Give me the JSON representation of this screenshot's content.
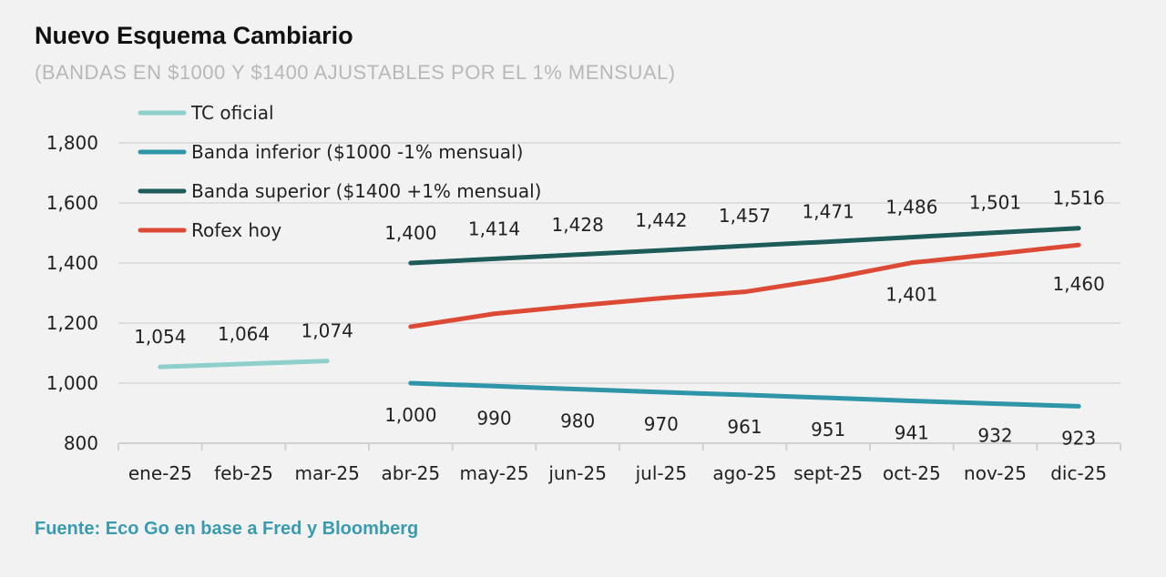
{
  "chart_data": {
    "type": "line",
    "title": "Nuevo Esquema Cambiario",
    "subtitle": "(BANDAS EN $1000 Y $1400 AJUSTABLES POR EL 1% MENSUAL)",
    "source": "Fuente: Eco Go en base a Fred y Bloomberg",
    "categories": [
      "ene-25",
      "feb-25",
      "mar-25",
      "abr-25",
      "may-25",
      "jun-25",
      "jul-25",
      "ago-25",
      "sept-25",
      "oct-25",
      "nov-25",
      "dic-25"
    ],
    "ylim": [
      800,
      1800
    ],
    "yticks": [
      "800",
      "1,000",
      "1,200",
      "1,400",
      "1,600",
      "1,800"
    ],
    "grid": true,
    "legend": "top-left",
    "series": [
      {
        "name": "TC oficial",
        "color": "#8ecfcb",
        "values": [
          1054,
          1064,
          1074,
          null,
          null,
          null,
          null,
          null,
          null,
          null,
          null,
          null
        ],
        "labels": [
          "1,054",
          "1,064",
          "1,074",
          "",
          "",
          "",
          "",
          "",
          "",
          "",
          "",
          ""
        ],
        "label_pos": "above"
      },
      {
        "name": "Banda inferior ($1000 -1% mensual)",
        "color": "#2f95a8",
        "values": [
          null,
          null,
          null,
          1000,
          990,
          980,
          970,
          961,
          951,
          941,
          932,
          923
        ],
        "labels": [
          "",
          "",
          "",
          "1,000",
          "990",
          "980",
          "970",
          "961",
          "951",
          "941",
          "932",
          "923"
        ],
        "label_pos": "below"
      },
      {
        "name": "Banda superior ($1400 +1% mensual)",
        "color": "#1e5c5a",
        "values": [
          null,
          null,
          null,
          1400,
          1414,
          1428,
          1442,
          1457,
          1471,
          1486,
          1501,
          1516
        ],
        "labels": [
          "",
          "",
          "",
          "1,400",
          "1,414",
          "1,428",
          "1,442",
          "1,457",
          "1,471",
          "1,486",
          "1,501",
          "1,516"
        ],
        "label_pos": "above"
      },
      {
        "name": "Rofex hoy",
        "color": "#dc4a35",
        "values": [
          null,
          null,
          null,
          1188,
          1231,
          1258,
          1283,
          1304,
          1347,
          1401,
          1430,
          1460
        ],
        "labels": [
          "",
          "",
          "",
          "",
          "",
          "",
          "",
          "",
          "",
          "1,401",
          "",
          "1,460"
        ],
        "label_pos": "below"
      }
    ]
  }
}
